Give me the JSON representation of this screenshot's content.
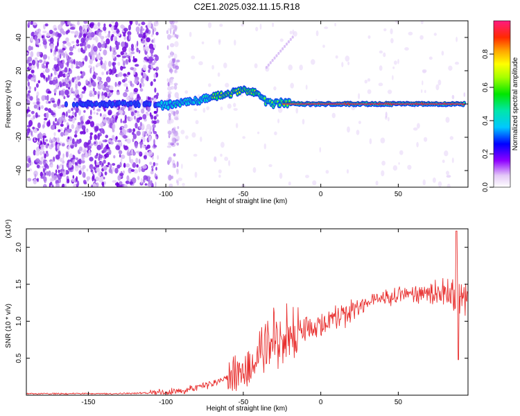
{
  "figure_title": "C2E1.2025.032.11.15.R18",
  "chart_data": [
    {
      "type": "heatmap",
      "xlabel": "Height of straight line (km)",
      "ylabel": "Frequency (Hz)",
      "xlim": [
        -190,
        95
      ],
      "ylim": [
        -50,
        50
      ],
      "x_ticks": [
        -150,
        -100,
        -50,
        0,
        50
      ],
      "x_tick_labels": [
        "-150",
        "-100",
        "-50",
        "0",
        "50"
      ],
      "y_ticks": [
        -40,
        -20,
        0,
        20,
        40
      ],
      "y_tick_labels": [
        "-40",
        "-20",
        "0",
        "20",
        "40"
      ],
      "ridge": {
        "x": [
          -160,
          -130,
          -110,
          -100,
          -90,
          -80,
          -70,
          -60,
          -52,
          -45,
          -40,
          -35,
          -30,
          -25,
          -15,
          0,
          20,
          50,
          90
        ],
        "frequency": [
          0,
          0,
          0,
          -1,
          1,
          2,
          4,
          6,
          8,
          8,
          6,
          1,
          0,
          1,
          0,
          0,
          0,
          0,
          0
        ]
      },
      "colorbar": {
        "label": "Normalized spectral amplitude",
        "range": [
          0,
          1
        ],
        "ticks": [
          0.0,
          0.2,
          0.4,
          0.6,
          0.8
        ],
        "tick_labels": [
          "0.0",
          "0.2",
          "0.4",
          "0.6",
          "0.8"
        ]
      }
    },
    {
      "type": "line",
      "xlabel": "Height of straight line (km)",
      "ylabel": "SNR (10 * v/v)",
      "scale_label": "(x10⁴)",
      "xlim": [
        -190,
        95
      ],
      "ylim": [
        0,
        2.25
      ],
      "x_ticks": [
        -150,
        -100,
        -50,
        0,
        50
      ],
      "x_tick_labels": [
        "-150",
        "-100",
        "-50",
        "0",
        "50"
      ],
      "y_ticks": [
        0.5,
        1.0,
        1.5,
        2.0
      ],
      "y_tick_labels": [
        "0.5",
        "1.0",
        "1.5",
        "2.0"
      ],
      "series": [
        {
          "color": "#e8302f",
          "x": [
            -190,
            -170,
            -150,
            -130,
            -110,
            -100,
            -95,
            -90,
            -85,
            -80,
            -75,
            -70,
            -65,
            -60,
            -55,
            -50,
            -45,
            -40,
            -35,
            -30,
            -25,
            -20,
            -15,
            -10,
            -5,
            0,
            5,
            10,
            15,
            20,
            25,
            30,
            40,
            50,
            60,
            70,
            75,
            80,
            85,
            88,
            90,
            95
          ],
          "y": [
            0.02,
            0.02,
            0.02,
            0.02,
            0.03,
            0.04,
            0.05,
            0.06,
            0.08,
            0.1,
            0.12,
            0.15,
            0.2,
            0.25,
            0.3,
            0.35,
            0.4,
            0.55,
            0.65,
            0.75,
            0.8,
            0.85,
            0.9,
            0.9,
            0.92,
            0.95,
            1.0,
            1.05,
            1.1,
            1.15,
            1.2,
            1.25,
            1.3,
            1.35,
            1.37,
            1.38,
            1.4,
            1.4,
            1.35,
            1.25,
            1.3,
            1.3
          ]
        }
      ]
    }
  ]
}
